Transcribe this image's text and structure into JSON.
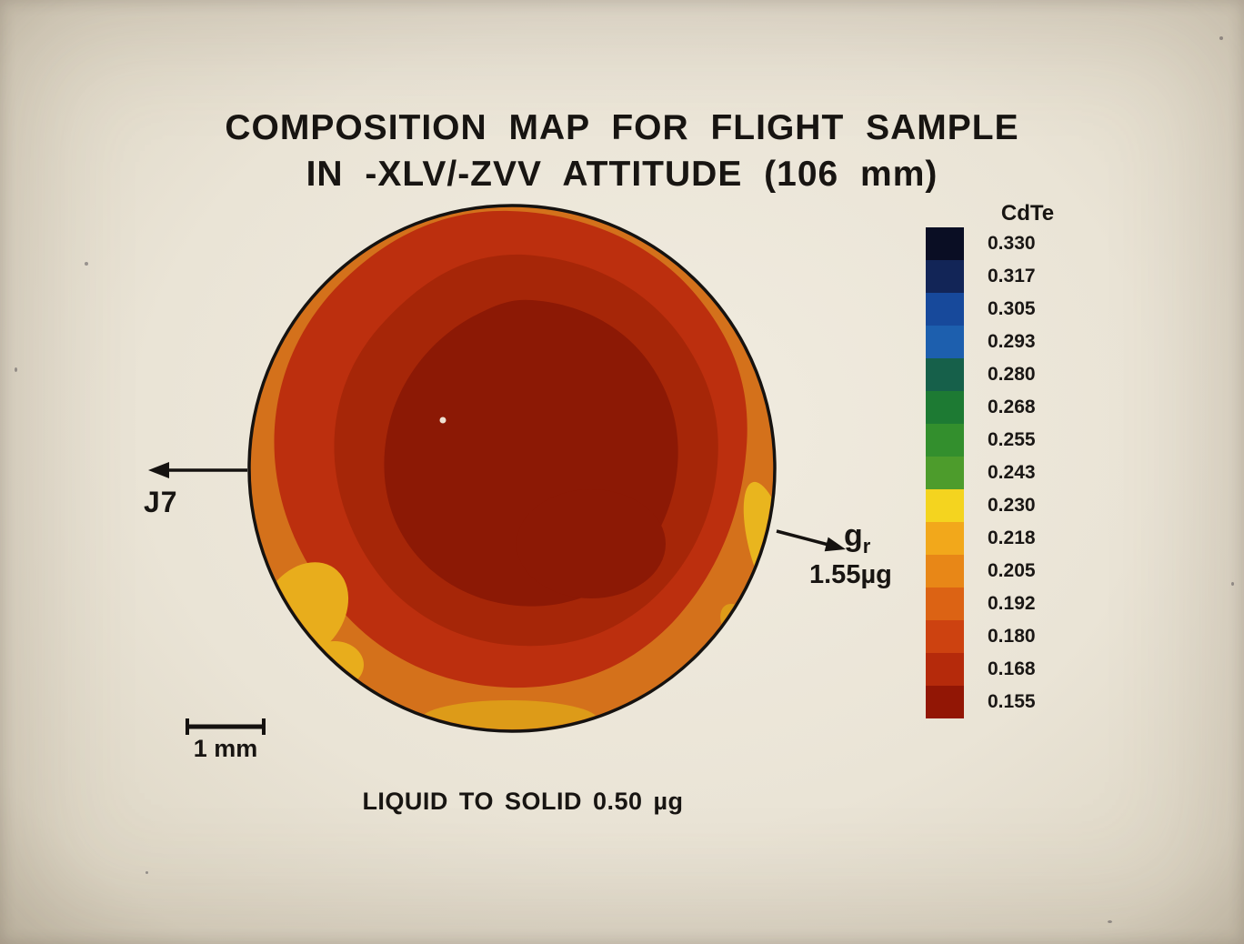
{
  "title": {
    "line1": "COMPOSITION MAP FOR FLIGHT SAMPLE",
    "line2": "IN -XLV/-ZVV ATTITUDE (106 mm)"
  },
  "legend": {
    "label": "CdTe",
    "entries": [
      {
        "value": "0.330",
        "color": "#0a0e24"
      },
      {
        "value": "0.317",
        "color": "#122557"
      },
      {
        "value": "0.305",
        "color": "#17499b"
      },
      {
        "value": "0.293",
        "color": "#1d5fae"
      },
      {
        "value": "0.280",
        "color": "#16604a"
      },
      {
        "value": "0.268",
        "color": "#1d7a33"
      },
      {
        "value": "0.255",
        "color": "#338f2d"
      },
      {
        "value": "0.243",
        "color": "#4d9c2c"
      },
      {
        "value": "0.230",
        "color": "#f4d41f"
      },
      {
        "value": "0.218",
        "color": "#f2a81b"
      },
      {
        "value": "0.205",
        "color": "#e88717"
      },
      {
        "value": "0.192",
        "color": "#dc6314"
      },
      {
        "value": "0.180",
        "color": "#cd4210"
      },
      {
        "value": "0.168",
        "color": "#b52a0b"
      },
      {
        "value": "0.155",
        "color": "#921605"
      }
    ]
  },
  "annotations": {
    "left_arrow_label": "J7",
    "g_label": "g",
    "g_sub": "r",
    "g_value": "1.55µg",
    "scale_bar_label": "1 mm",
    "bottom_caption": "LIQUID TO SOLID 0.50 µg"
  },
  "palette": {
    "rim": "#d4711b",
    "red": "#bc2f0e",
    "mid": "#a62608",
    "core": "#8c1905",
    "yellow": "#e8ad1c",
    "yellow2": "#e9b51e",
    "bottom_yellow": "#dd9b18",
    "outline": "#151210"
  },
  "chart_data": {
    "type": "heatmap",
    "title": "COMPOSITION MAP FOR FLIGHT SAMPLE IN -XLV/-ZVV ATTITUDE (106 mm)",
    "colorbar": {
      "label": "CdTe",
      "orientation": "vertical",
      "tick_values": [
        0.33,
        0.317,
        0.305,
        0.293,
        0.28,
        0.268,
        0.255,
        0.243,
        0.23,
        0.218,
        0.205,
        0.192,
        0.18,
        0.168,
        0.155
      ],
      "top_color": "dark navy blue",
      "bottom_color": "dark red"
    },
    "map": {
      "shape": "circular sample cross-section",
      "scale_bar": "1 mm",
      "regions": [
        {
          "area": "center core",
          "cdte_value": "~0.155-0.168",
          "color": "dark red"
        },
        {
          "area": "mid annulus",
          "cdte_value": "~0.180-0.192",
          "color": "red"
        },
        {
          "area": "outer rim",
          "cdte_value": "~0.205-0.218",
          "color": "orange"
        },
        {
          "area": "rim patches bottom-left / right / bottom",
          "cdte_value": "~0.230",
          "color": "yellow"
        }
      ]
    },
    "annotations": [
      "J7 (arrow pointing left from sample edge)",
      "g_r = 1.55 µg (arrow pointing right from sample edge)",
      "LIQUID TO SOLID 0.50 µg",
      "scale bar: 1 mm"
    ]
  }
}
